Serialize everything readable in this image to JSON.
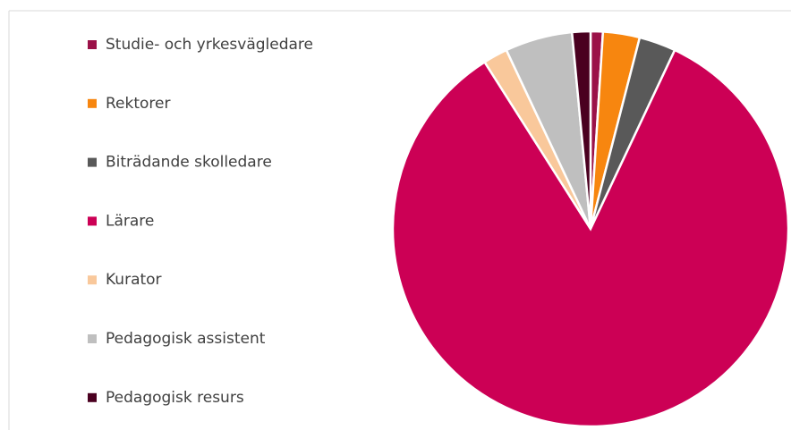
{
  "chart_data": {
    "type": "pie",
    "categories": [
      "Studie- och yrkesvägledare",
      "Rektorer",
      "Biträdande skolledare",
      "Lärare",
      "Kurator",
      "Pedagogisk assistent",
      "Pedagogisk resurs"
    ],
    "values": [
      1,
      3,
      3,
      84,
      2,
      5.5,
      1.5
    ],
    "colors": [
      "#9b1148",
      "#f7860f",
      "#595959",
      "#cc0055",
      "#f9c89b",
      "#bfbfbf",
      "#4a0020"
    ],
    "legend": "left"
  }
}
